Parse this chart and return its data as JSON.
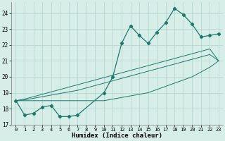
{
  "xlabel": "Humidex (Indice chaleur)",
  "background_color": "#d7ede8",
  "grid_color": "#b8d8d2",
  "line_color": "#1a7a6e",
  "x_data": [
    0,
    1,
    2,
    3,
    4,
    5,
    6,
    7,
    8,
    9,
    10,
    11,
    12,
    13,
    14,
    15,
    16,
    17,
    18,
    19,
    20,
    21,
    22,
    23
  ],
  "y_main": [
    18.5,
    17.6,
    17.7,
    18.1,
    18.2,
    17.5,
    17.5,
    17.6,
    null,
    null,
    19.0,
    20.0,
    22.1,
    23.2,
    22.6,
    22.1,
    22.8,
    23.4,
    24.3,
    23.9,
    23.3,
    22.5,
    22.6,
    22.7
  ],
  "y_trend1": [
    18.5,
    18.55,
    18.65,
    18.75,
    18.85,
    18.95,
    19.05,
    19.15,
    19.3,
    19.45,
    19.6,
    19.75,
    19.9,
    20.05,
    20.2,
    20.35,
    20.5,
    20.65,
    20.8,
    20.95,
    21.1,
    21.25,
    21.4,
    21.0
  ],
  "y_trend2": [
    18.5,
    18.6,
    18.75,
    18.9,
    19.05,
    19.2,
    19.35,
    19.5,
    19.65,
    19.8,
    19.95,
    20.1,
    20.25,
    20.4,
    20.55,
    20.7,
    20.85,
    21.0,
    21.15,
    21.3,
    21.45,
    21.6,
    21.75,
    21.0
  ],
  "y_trend3": [
    18.5,
    18.5,
    18.5,
    18.5,
    18.5,
    18.5,
    18.5,
    18.5,
    18.5,
    18.5,
    18.5,
    18.6,
    18.7,
    18.8,
    18.9,
    19.0,
    19.2,
    19.4,
    19.6,
    19.8,
    20.0,
    20.3,
    20.6,
    21.0
  ],
  "ylim": [
    17.0,
    24.7
  ],
  "xlim": [
    -0.5,
    23.5
  ],
  "yticks": [
    17,
    18,
    19,
    20,
    21,
    22,
    23,
    24
  ],
  "xticks": [
    0,
    1,
    2,
    3,
    4,
    5,
    6,
    7,
    8,
    9,
    10,
    11,
    12,
    13,
    14,
    15,
    16,
    17,
    18,
    19,
    20,
    21,
    22,
    23
  ]
}
